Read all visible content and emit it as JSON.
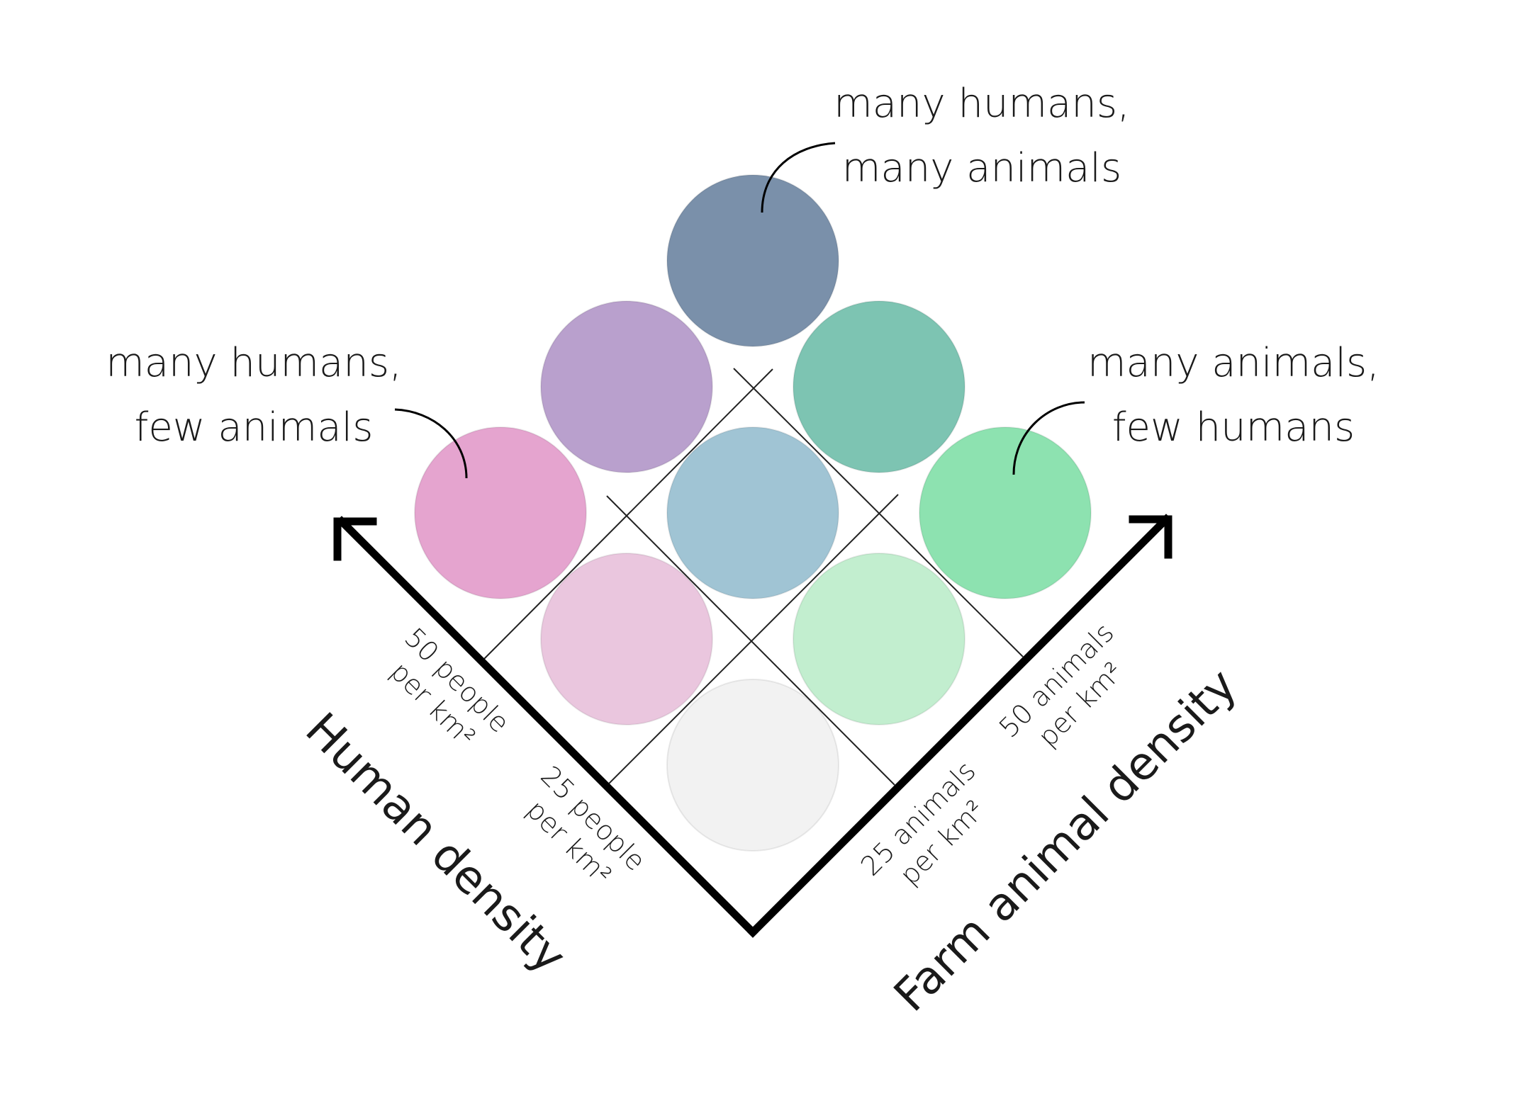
{
  "cells": [
    {
      "key": "low-low",
      "human": 0,
      "animal": 0,
      "color": "#f2f2f2"
    },
    {
      "key": "low-mid",
      "human": 0,
      "animal": 1,
      "color": "#c2eecf"
    },
    {
      "key": "low-high",
      "human": 0,
      "animal": 2,
      "color": "#8de2b0"
    },
    {
      "key": "mid-low",
      "human": 1,
      "animal": 0,
      "color": "#eac6de"
    },
    {
      "key": "mid-mid",
      "human": 1,
      "animal": 1,
      "color": "#a0c4d4"
    },
    {
      "key": "mid-high",
      "human": 1,
      "animal": 2,
      "color": "#7dc4b2"
    },
    {
      "key": "high-low",
      "human": 2,
      "animal": 0,
      "color": "#e5a4cf"
    },
    {
      "key": "high-mid",
      "human": 2,
      "animal": 1,
      "color": "#b9a0cd"
    },
    {
      "key": "high-high",
      "human": 2,
      "animal": 2,
      "color": "#7a90aa"
    }
  ],
  "annotations": {
    "many_many": {
      "line1": "many humans,",
      "line2": "many animals"
    },
    "humans_few": {
      "line1": "many humans,",
      "line2": "few animals"
    },
    "animals_few": {
      "line1": "many animals,",
      "line2": "few humans"
    }
  },
  "axes": {
    "human": {
      "title": "Human density",
      "ticks": [
        {
          "line1": "25 people",
          "line2": "per km²"
        },
        {
          "line1": "50 people",
          "line2": "per km²"
        }
      ]
    },
    "animal": {
      "title": "Farm animal density",
      "ticks": [
        {
          "line1": "25 animals",
          "line2": "per km²"
        },
        {
          "line1": "50 animals",
          "line2": "per km²"
        }
      ]
    }
  }
}
